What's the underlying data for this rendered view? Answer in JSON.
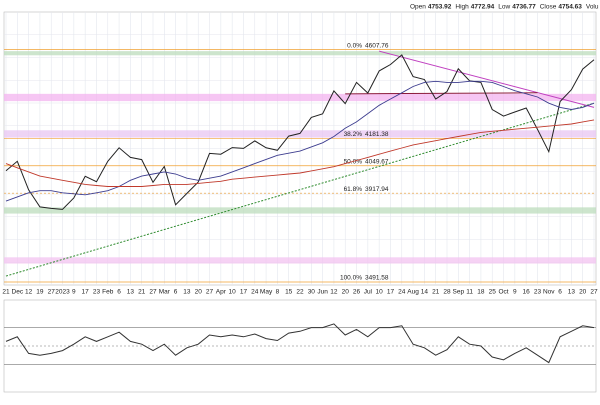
{
  "header": {
    "items": [
      {
        "label": "Open",
        "value": 4753.92
      },
      {
        "label": "High",
        "value": 4772.94
      },
      {
        "label": "Low",
        "value": 4736.77
      },
      {
        "label": "Close",
        "value": 4754.63
      }
    ],
    "tail": "Volu"
  },
  "chart_data": [
    {
      "type": "line",
      "x": [
        "21",
        "Dec",
        "12",
        "19",
        "27",
        "2023",
        "9",
        "17",
        "23",
        "Feb",
        "6",
        "13",
        "21",
        "27",
        "Mar",
        "6",
        "13",
        "20",
        "27",
        "Apr",
        "10",
        "17",
        "24",
        "May",
        "8",
        "15",
        "22",
        "30",
        "Jun",
        "12",
        "20",
        "26",
        "Jul",
        "10",
        "17",
        "24",
        "Aug",
        "14",
        "21",
        "28",
        "Sep",
        "11",
        "18",
        "25",
        "Oct",
        "9",
        "16",
        "23",
        "Nov",
        "6",
        "13",
        "20",
        "27"
      ],
      "ylim": [
        3477,
        4788
      ],
      "grid": true,
      "series": [
        {
          "color": "#222222",
          "values": [
            4026,
            4071,
            3934,
            3852,
            3845,
            3840,
            3895,
            3999,
            3973,
            4071,
            4136,
            4090,
            4079,
            3970,
            4046,
            3862,
            3917,
            3971,
            4109,
            4105,
            4137,
            4133,
            4169,
            4136,
            4124,
            4192,
            4205,
            4282,
            4299,
            4409,
            4348,
            4450,
            4399,
            4505,
            4536,
            4582,
            4478,
            4464,
            4370,
            4406,
            4515,
            4457,
            4450,
            4320,
            4288,
            4308,
            4327,
            4224,
            4117,
            4358,
            4415,
            4514,
            4559
          ]
        },
        {
          "color": "#3d3d8f",
          "values": [
            3880,
            3900,
            3920,
            3930,
            3930,
            3920,
            3915,
            3910,
            3920,
            3930,
            3950,
            3980,
            4000,
            4010,
            4020,
            4010,
            3990,
            3980,
            3990,
            4000,
            4020,
            4040,
            4060,
            4080,
            4100,
            4110,
            4120,
            4140,
            4160,
            4190,
            4230,
            4260,
            4300,
            4340,
            4370,
            4400,
            4430,
            4450,
            4455,
            4450,
            4450,
            4455,
            4455,
            4450,
            4430,
            4410,
            4395,
            4380,
            4350,
            4330,
            4320,
            4330,
            4350
          ]
        },
        {
          "color": "#c0392b",
          "values": [
            4060,
            4040,
            4020,
            4000,
            3990,
            3980,
            3970,
            3960,
            3955,
            3950,
            3950,
            3950,
            3950,
            3955,
            3960,
            3960,
            3960,
            3965,
            3970,
            3975,
            3985,
            3990,
            3995,
            4000,
            4005,
            4010,
            4015,
            4025,
            4035,
            4045,
            4060,
            4075,
            4090,
            4105,
            4120,
            4135,
            4150,
            4160,
            4170,
            4180,
            4190,
            4200,
            4210,
            4215,
            4220,
            4225,
            4230,
            4235,
            4240,
            4245,
            4250,
            4260,
            4270
          ]
        }
      ],
      "fib_levels": [
        {
          "label": "0.0%",
          "value": 4607.76
        },
        {
          "label": "38.2%",
          "value": 4181.38
        },
        {
          "label": "50.0%",
          "value": 4049.67
        },
        {
          "label": "61.8%",
          "value": 3917.94
        },
        {
          "label": "100.0%",
          "value": 3491.58
        }
      ],
      "fib_color": "#f0a030",
      "zones": [
        {
          "from": 4360,
          "to": 4395,
          "color": "#f3b3ef"
        },
        {
          "from": 4185,
          "to": 4220,
          "color": "#e8c6f2"
        },
        {
          "from": 3580,
          "to": 3610,
          "color": "#f3c3f0"
        },
        {
          "from": 4580,
          "to": 4600,
          "color": "#bcdcbc"
        },
        {
          "from": 3820,
          "to": 3850,
          "color": "#bcdcbc"
        }
      ],
      "trendlines": [
        {
          "x": [
            0,
            52
          ],
          "y": [
            3520,
            4350
          ],
          "color": "#2e8b2e",
          "dash": true
        },
        {
          "x": [
            33,
            52
          ],
          "y": [
            4600,
            4330
          ],
          "color": "#c040c0",
          "dash": false
        },
        {
          "x": [
            30,
            47
          ],
          "y": [
            4395,
            4400
          ],
          "color": "#8b1a3a",
          "dash": false
        }
      ]
    },
    {
      "type": "line",
      "ylim": [
        0,
        100
      ],
      "hlines": [
        70,
        50,
        30
      ],
      "series": [
        {
          "color": "#333333",
          "values": [
            55,
            60,
            42,
            40,
            42,
            45,
            52,
            60,
            55,
            60,
            65,
            55,
            52,
            45,
            52,
            40,
            48,
            52,
            62,
            60,
            62,
            60,
            63,
            58,
            56,
            64,
            66,
            70,
            70,
            74,
            62,
            68,
            60,
            70,
            70,
            72,
            52,
            48,
            40,
            46,
            60,
            52,
            50,
            38,
            35,
            42,
            48,
            40,
            32,
            60,
            66,
            72,
            70
          ]
        }
      ]
    }
  ]
}
